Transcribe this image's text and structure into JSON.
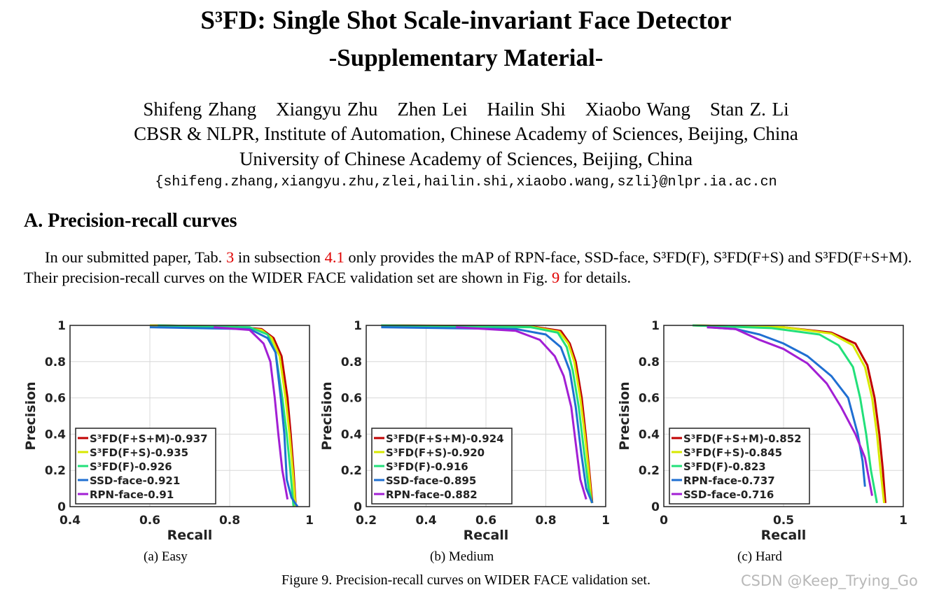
{
  "header": {
    "title_line1": "S³FD: Single Shot Scale-invariant Face Detector",
    "title_line2": "-Supplementary Material-",
    "authors": [
      "Shifeng Zhang",
      "Xiangyu Zhu",
      "Zhen Lei",
      "Hailin Shi",
      "Xiaobo Wang",
      "Stan Z. Li"
    ],
    "affiliation1": "CBSR & NLPR, Institute of Automation, Chinese Academy of Sciences, Beijing, China",
    "affiliation2": "University of Chinese Academy of Sciences, Beijing, China",
    "email": "{shifeng.zhang,xiangyu.zhu,zlei,hailin.shi,xiaobo.wang,szli}@nlpr.ia.ac.cn"
  },
  "section": {
    "heading": "A. Precision-recall curves",
    "paragraph": [
      {
        "text": "In our submitted paper, Tab. ",
        "link": false
      },
      {
        "text": "3",
        "link": true
      },
      {
        "text": " in subsection ",
        "link": false
      },
      {
        "text": "4.1",
        "link": true
      },
      {
        "text": " only provides the mAP of RPN-face, SSD-face, S³FD(F), S³FD(F+S) and S³FD(F+S+M). Their precision-recall curves on the WIDER FACE validation set are shown in Fig. ",
        "link": false
      },
      {
        "text": "9",
        "link": true
      },
      {
        "text": " for details.",
        "link": false
      }
    ]
  },
  "colors": {
    "link": "#e00000",
    "red": "#c00000",
    "yellow": "#d8e800",
    "green": "#22e07a",
    "blue": "#1f6fd2",
    "purple": "#a21fd4"
  },
  "chart_data": [
    {
      "type": "line",
      "subcaption": "(a) Easy",
      "xlabel": "Recall",
      "ylabel": "Precision",
      "xlim": [
        0.4,
        1
      ],
      "ylim": [
        0,
        1
      ],
      "xticks": [
        "0.4",
        "0.6",
        "0.8",
        "1"
      ],
      "xtick_values": [
        0.4,
        0.6,
        0.8,
        1
      ],
      "yticks": [
        "0",
        "0.2",
        "0.4",
        "0.6",
        "0.8",
        "1"
      ],
      "ytick_values": [
        0,
        0.2,
        0.4,
        0.6,
        0.8,
        1
      ],
      "grid": true,
      "legend_position": "bottom-left",
      "series": [
        {
          "name": "S³FD(F+S+M)-0.937",
          "color": "red",
          "points": [
            [
              0.6,
              1
            ],
            [
              0.8,
              0.995
            ],
            [
              0.88,
              0.98
            ],
            [
              0.91,
              0.93
            ],
            [
              0.93,
              0.83
            ],
            [
              0.945,
              0.6
            ],
            [
              0.953,
              0.4
            ],
            [
              0.96,
              0.2
            ],
            [
              0.965,
              0.02
            ]
          ]
        },
        {
          "name": "S³FD(F+S)-0.935",
          "color": "yellow",
          "points": [
            [
              0.6,
              1
            ],
            [
              0.8,
              0.995
            ],
            [
              0.88,
              0.975
            ],
            [
              0.905,
              0.93
            ],
            [
              0.925,
              0.83
            ],
            [
              0.94,
              0.6
            ],
            [
              0.95,
              0.4
            ],
            [
              0.958,
              0.2
            ],
            [
              0.965,
              0.0
            ]
          ]
        },
        {
          "name": "S³FD(F)-0.926",
          "color": "green",
          "points": [
            [
              0.62,
              1
            ],
            [
              0.85,
              0.99
            ],
            [
              0.895,
              0.95
            ],
            [
              0.915,
              0.85
            ],
            [
              0.932,
              0.6
            ],
            [
              0.943,
              0.4
            ],
            [
              0.952,
              0.2
            ],
            [
              0.96,
              0.0
            ]
          ]
        },
        {
          "name": "SSD-face-0.921",
          "color": "blue",
          "points": [
            [
              0.6,
              0.99
            ],
            [
              0.85,
              0.98
            ],
            [
              0.895,
              0.93
            ],
            [
              0.915,
              0.85
            ],
            [
              0.928,
              0.6
            ],
            [
              0.937,
              0.4
            ],
            [
              0.943,
              0.15
            ],
            [
              0.955,
              0.05
            ],
            [
              0.97,
              0.0
            ]
          ]
        },
        {
          "name": "RPN-face-0.91",
          "color": "purple",
          "points": [
            [
              0.76,
              0.99
            ],
            [
              0.85,
              0.975
            ],
            [
              0.885,
              0.9
            ],
            [
              0.902,
              0.8
            ],
            [
              0.913,
              0.6
            ],
            [
              0.922,
              0.4
            ],
            [
              0.932,
              0.2
            ],
            [
              0.945,
              0.04
            ]
          ]
        }
      ]
    },
    {
      "type": "line",
      "subcaption": "(b) Medium",
      "xlabel": "Recall",
      "ylabel": "Precision",
      "xlim": [
        0.2,
        1
      ],
      "ylim": [
        0,
        1
      ],
      "xticks": [
        "0.2",
        "0.4",
        "0.6",
        "0.8",
        "1"
      ],
      "xtick_values": [
        0.2,
        0.4,
        0.6,
        0.8,
        1
      ],
      "yticks": [
        "0",
        "0.2",
        "0.4",
        "0.6",
        "0.8",
        "1"
      ],
      "ytick_values": [
        0,
        0.2,
        0.4,
        0.6,
        0.8,
        1
      ],
      "grid": true,
      "legend_position": "bottom-left",
      "series": [
        {
          "name": "S³FD(F+S+M)-0.924",
          "color": "red",
          "points": [
            [
              0.25,
              1
            ],
            [
              0.75,
              0.995
            ],
            [
              0.85,
              0.97
            ],
            [
              0.88,
              0.9
            ],
            [
              0.9,
              0.8
            ],
            [
              0.92,
              0.6
            ],
            [
              0.933,
              0.4
            ],
            [
              0.945,
              0.2
            ],
            [
              0.955,
              0.02
            ]
          ]
        },
        {
          "name": "S³FD(F+S)-0.920",
          "color": "yellow",
          "points": [
            [
              0.25,
              1
            ],
            [
              0.75,
              0.993
            ],
            [
              0.845,
              0.965
            ],
            [
              0.875,
              0.9
            ],
            [
              0.895,
              0.8
            ],
            [
              0.915,
              0.6
            ],
            [
              0.93,
              0.4
            ],
            [
              0.943,
              0.2
            ],
            [
              0.953,
              0.02
            ]
          ]
        },
        {
          "name": "S³FD(F)-0.916",
          "color": "green",
          "points": [
            [
              0.25,
              1
            ],
            [
              0.75,
              0.99
            ],
            [
              0.84,
              0.96
            ],
            [
              0.87,
              0.88
            ],
            [
              0.89,
              0.75
            ],
            [
              0.91,
              0.55
            ],
            [
              0.928,
              0.3
            ],
            [
              0.943,
              0.1
            ],
            [
              0.955,
              0.02
            ]
          ]
        },
        {
          "name": "SSD-face-0.895",
          "color": "blue",
          "points": [
            [
              0.25,
              0.99
            ],
            [
              0.7,
              0.98
            ],
            [
              0.8,
              0.95
            ],
            [
              0.85,
              0.88
            ],
            [
              0.88,
              0.75
            ],
            [
              0.9,
              0.55
            ],
            [
              0.918,
              0.3
            ],
            [
              0.935,
              0.1
            ],
            [
              0.955,
              0.02
            ]
          ]
        },
        {
          "name": "RPN-face-0.882",
          "color": "purple",
          "points": [
            [
              0.5,
              0.99
            ],
            [
              0.7,
              0.97
            ],
            [
              0.78,
              0.92
            ],
            [
              0.83,
              0.83
            ],
            [
              0.86,
              0.72
            ],
            [
              0.885,
              0.55
            ],
            [
              0.9,
              0.35
            ],
            [
              0.915,
              0.15
            ],
            [
              0.935,
              0.04
            ]
          ]
        }
      ]
    },
    {
      "type": "line",
      "subcaption": "(c) Hard",
      "xlabel": "Recall",
      "ylabel": "Precision",
      "xlim": [
        0,
        1
      ],
      "ylim": [
        0,
        1
      ],
      "xticks": [
        "0",
        "0.5",
        "1"
      ],
      "xtick_values": [
        0,
        0.5,
        1
      ],
      "yticks": [
        "0",
        "0.2",
        "0.4",
        "0.6",
        "0.8",
        "1"
      ],
      "ytick_values": [
        0,
        0.2,
        0.4,
        0.6,
        0.8,
        1
      ],
      "grid": true,
      "legend_position": "bottom-left",
      "series": [
        {
          "name": "S³FD(F+S+M)-0.852",
          "color": "red",
          "points": [
            [
              0.12,
              1
            ],
            [
              0.5,
              0.99
            ],
            [
              0.7,
              0.96
            ],
            [
              0.8,
              0.9
            ],
            [
              0.85,
              0.78
            ],
            [
              0.88,
              0.6
            ],
            [
              0.9,
              0.4
            ],
            [
              0.915,
              0.2
            ],
            [
              0.925,
              0.02
            ]
          ]
        },
        {
          "name": "S³FD(F+S)-0.845",
          "color": "yellow",
          "points": [
            [
              0.12,
              1
            ],
            [
              0.5,
              0.99
            ],
            [
              0.7,
              0.955
            ],
            [
              0.79,
              0.89
            ],
            [
              0.84,
              0.77
            ],
            [
              0.87,
              0.6
            ],
            [
              0.89,
              0.4
            ],
            [
              0.905,
              0.2
            ],
            [
              0.92,
              0.02
            ]
          ]
        },
        {
          "name": "S³FD(F)-0.823",
          "color": "green",
          "points": [
            [
              0.12,
              1
            ],
            [
              0.45,
              0.985
            ],
            [
              0.65,
              0.95
            ],
            [
              0.73,
              0.89
            ],
            [
              0.79,
              0.77
            ],
            [
              0.82,
              0.6
            ],
            [
              0.845,
              0.4
            ],
            [
              0.865,
              0.2
            ],
            [
              0.89,
              0.02
            ]
          ]
        },
        {
          "name": "RPN-face-0.737",
          "color": "blue",
          "points": [
            [
              0.18,
              0.99
            ],
            [
              0.3,
              0.98
            ],
            [
              0.4,
              0.95
            ],
            [
              0.5,
              0.9
            ],
            [
              0.6,
              0.83
            ],
            [
              0.7,
              0.72
            ],
            [
              0.77,
              0.6
            ],
            [
              0.81,
              0.4
            ],
            [
              0.83,
              0.25
            ],
            [
              0.84,
              0.11
            ]
          ]
        },
        {
          "name": "SSD-face-0.716",
          "color": "purple",
          "points": [
            [
              0.18,
              0.99
            ],
            [
              0.3,
              0.98
            ],
            [
              0.4,
              0.92
            ],
            [
              0.5,
              0.87
            ],
            [
              0.6,
              0.79
            ],
            [
              0.68,
              0.68
            ],
            [
              0.74,
              0.55
            ],
            [
              0.8,
              0.4
            ],
            [
              0.84,
              0.27
            ],
            [
              0.87,
              0.06
            ]
          ]
        }
      ]
    }
  ],
  "figure_caption": "Figure 9. Precision-recall curves on WIDER FACE validation set.",
  "watermark": "CSDN @Keep_Trying_Go"
}
